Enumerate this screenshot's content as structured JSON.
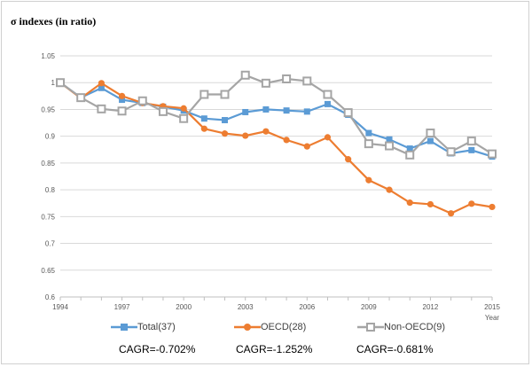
{
  "chart_data": {
    "type": "line",
    "title": "",
    "ylabel": "σ indexes (in ratio)",
    "xlabel": "Year",
    "ylim": [
      0.6,
      1.05
    ],
    "yticks": [
      0.6,
      0.65,
      0.7,
      0.75,
      0.8,
      0.85,
      0.9,
      0.95,
      1,
      1.05
    ],
    "ytick_labels": [
      "0.6",
      "0.65",
      "0.7",
      "0.75",
      "0.8",
      "0.85",
      "0.9",
      "0.95",
      "1",
      "1.05"
    ],
    "xlim": [
      1994,
      2015
    ],
    "xticks": [
      1994,
      1997,
      2000,
      2003,
      2006,
      2009,
      2012,
      2015
    ],
    "xtick_labels": [
      "1994",
      "1997",
      "2000",
      "2003",
      "2006",
      "2009",
      "2012",
      "2015"
    ],
    "x": [
      1994,
      1995,
      1996,
      1997,
      1998,
      1999,
      2000,
      2001,
      2002,
      2003,
      2004,
      2005,
      2006,
      2007,
      2008,
      2009,
      2010,
      2011,
      2012,
      2013,
      2014,
      2015
    ],
    "grid": "horizontal",
    "legend": "bottom",
    "series": [
      {
        "name": "Total(37)",
        "color": "#5b9bd5",
        "marker": "square",
        "values": [
          1.0,
          0.972,
          0.99,
          0.968,
          0.962,
          0.955,
          0.948,
          0.933,
          0.93,
          0.945,
          0.95,
          0.948,
          0.946,
          0.96,
          0.94,
          0.906,
          0.894,
          0.877,
          0.891,
          0.868,
          0.874,
          0.862
        ]
      },
      {
        "name": "OECD(28)",
        "color": "#ed7d31",
        "marker": "circle",
        "values": [
          1.0,
          0.971,
          0.999,
          0.975,
          0.962,
          0.956,
          0.952,
          0.914,
          0.905,
          0.901,
          0.909,
          0.893,
          0.881,
          0.898,
          0.857,
          0.818,
          0.8,
          0.776,
          0.773,
          0.756,
          0.774,
          0.768
        ]
      },
      {
        "name": "Non-OECD(9)",
        "color": "#a5a5a5",
        "marker": "open-square",
        "values": [
          1.0,
          0.972,
          0.951,
          0.947,
          0.966,
          0.946,
          0.933,
          0.978,
          0.978,
          1.014,
          0.999,
          1.007,
          1.003,
          0.978,
          0.944,
          0.886,
          0.882,
          0.865,
          0.906,
          0.871,
          0.891,
          0.867
        ]
      }
    ],
    "annotations": [
      "CAGR=-0.702%",
      "CAGR=-1.252%",
      "CAGR=-0.681%"
    ]
  }
}
